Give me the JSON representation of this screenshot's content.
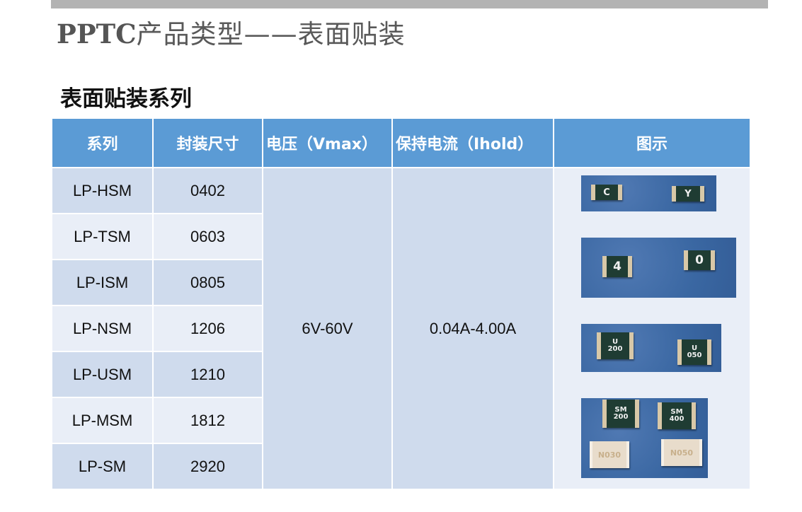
{
  "header": {
    "brand": "PPTC",
    "title": "产品类型——表面贴装"
  },
  "section_title": "表面贴装系列",
  "table": {
    "columns": [
      "系列",
      "封装尺寸",
      "电压（Vmax）",
      "保持电流（Ihold）",
      "图示"
    ],
    "rows": [
      {
        "series": "LP-HSM",
        "package": "0402"
      },
      {
        "series": "LP-TSM",
        "package": "0603"
      },
      {
        "series": "LP-ISM",
        "package": "0805"
      },
      {
        "series": "LP-NSM",
        "package": "1206"
      },
      {
        "series": "LP-USM",
        "package": "1210"
      },
      {
        "series": "LP-MSM",
        "package": "1812"
      },
      {
        "series": "LP-SM",
        "package": "2920"
      }
    ],
    "voltage": "6V-60V",
    "hold_current": "0.04A-4.00A"
  },
  "photos": [
    {
      "chips": [
        "C",
        "Y"
      ]
    },
    {
      "chips": [
        "4",
        "0"
      ]
    },
    {
      "chips": [
        "U 200",
        "U 050"
      ]
    },
    {
      "chips": [
        "SM 200",
        "SM 400",
        "N030",
        "N050"
      ]
    }
  ],
  "colors": {
    "header_bg": "#5b9bd5",
    "row_dark": "#cfdbed",
    "row_light": "#e9eef7",
    "top_bar": "#b3b3b3"
  }
}
